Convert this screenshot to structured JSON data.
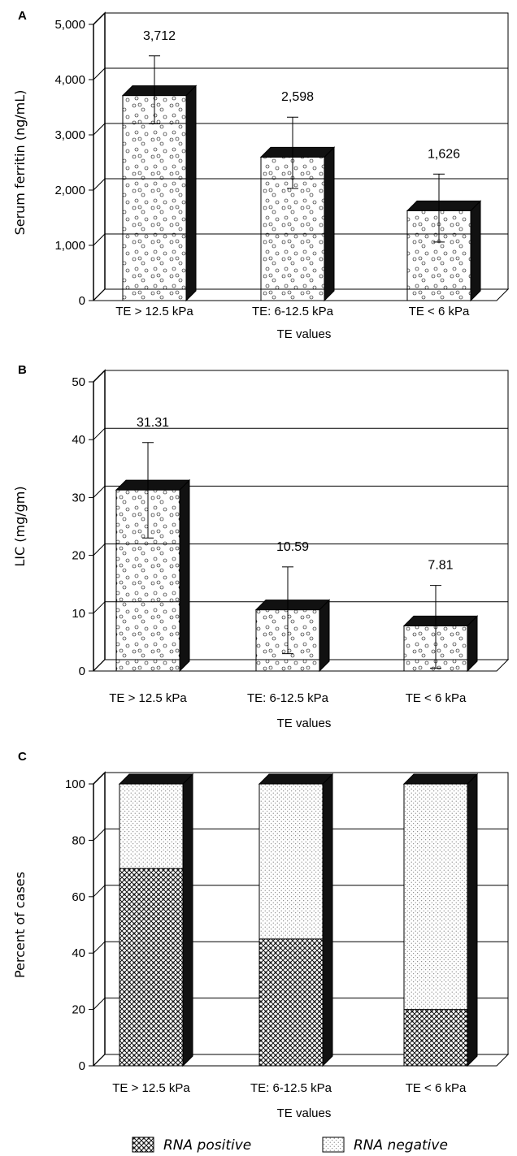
{
  "chart_data": [
    {
      "panel_label": "A",
      "type": "bar",
      "categories": [
        "TE > 12.5 kPa",
        "TE: 6-12.5 kPa",
        "TE < 6 kPa"
      ],
      "values": [
        3712,
        2598,
        1626
      ],
      "value_labels": [
        "3,712",
        "2,598",
        "1,626"
      ],
      "error_upper": [
        4430,
        3320,
        2290
      ],
      "error_lower": [
        3200,
        2030,
        1060
      ],
      "ylabel": "Serum ferritin (ng/mL)",
      "xlabel": "TE values",
      "ylim": [
        0,
        5000
      ],
      "yticks": [
        0,
        1000,
        2000,
        3000,
        4000,
        5000
      ],
      "ytick_labels": [
        "0",
        "1,000",
        "2,000",
        "3,000",
        "4,000",
        "5,000"
      ],
      "pattern": "circles",
      "grid": true
    },
    {
      "panel_label": "B",
      "type": "bar",
      "categories": [
        "TE > 12.5 kPa",
        "TE: 6-12.5 kPa",
        "TE < 6 kPa"
      ],
      "values": [
        31.31,
        10.59,
        7.81
      ],
      "value_labels": [
        "31.31",
        "10.59",
        "7.81"
      ],
      "error_upper": [
        39.5,
        18.0,
        14.8
      ],
      "error_lower": [
        23.0,
        3.0,
        0.5
      ],
      "ylabel": "LIC (mg/gm)",
      "xlabel": "TE values",
      "ylim": [
        0,
        50
      ],
      "yticks": [
        0,
        10,
        20,
        30,
        40,
        50
      ],
      "ytick_labels": [
        "0",
        "10",
        "20",
        "30",
        "40",
        "50"
      ],
      "pattern": "circles",
      "grid": true
    },
    {
      "panel_label": "C",
      "type": "bar",
      "stacked": true,
      "categories": [
        "TE > 12.5 kPa",
        "TE: 6-12.5 kPa",
        "TE < 6 kPa"
      ],
      "series": [
        {
          "name": "RNA positive",
          "values": [
            70,
            45,
            20
          ],
          "pattern": "crosshatch"
        },
        {
          "name": "RNA negative",
          "values": [
            30,
            55,
            80
          ],
          "pattern": "dots"
        }
      ],
      "ylabel": "Percent of cases",
      "xlabel": "TE values",
      "ylim": [
        0,
        100
      ],
      "yticks": [
        0,
        20,
        40,
        60,
        80,
        100
      ],
      "ytick_labels": [
        "0",
        "20",
        "40",
        "60",
        "80",
        "100"
      ],
      "legend_position": "bottom",
      "grid": true
    }
  ]
}
